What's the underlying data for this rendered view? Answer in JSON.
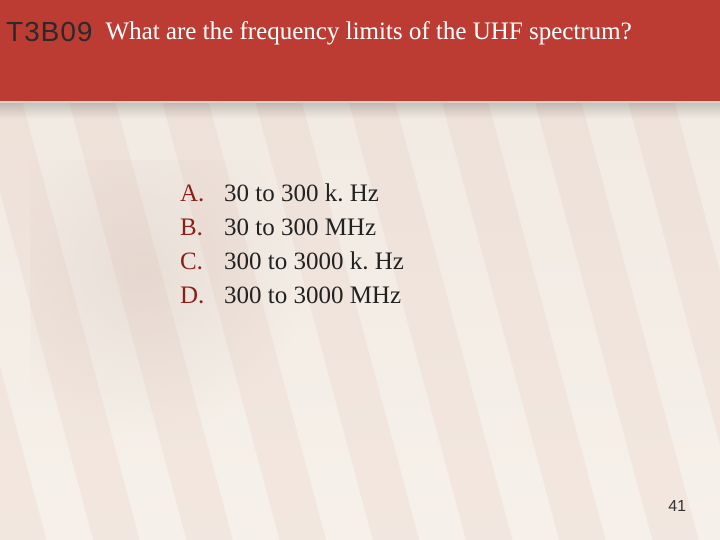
{
  "header": {
    "code": "T3B09",
    "question": "What are the frequency limits of the UHF spectrum?",
    "bg_color": "#bc3c33",
    "text_color": "#ffffff",
    "code_color": "#2a2a2a"
  },
  "choices": [
    {
      "letter": "A.",
      "text": "30 to 300 k. Hz"
    },
    {
      "letter": "B.",
      "text": "30 to 300 MHz"
    },
    {
      "letter": "C.",
      "text": "300 to 3000 k. Hz"
    },
    {
      "letter": "D.",
      "text": "300 to 3000 MHz"
    }
  ],
  "choice_letter_color": "#8a1f1a",
  "choice_text_color": "#222222",
  "page_number": "41",
  "background_color": "#f5efe8"
}
